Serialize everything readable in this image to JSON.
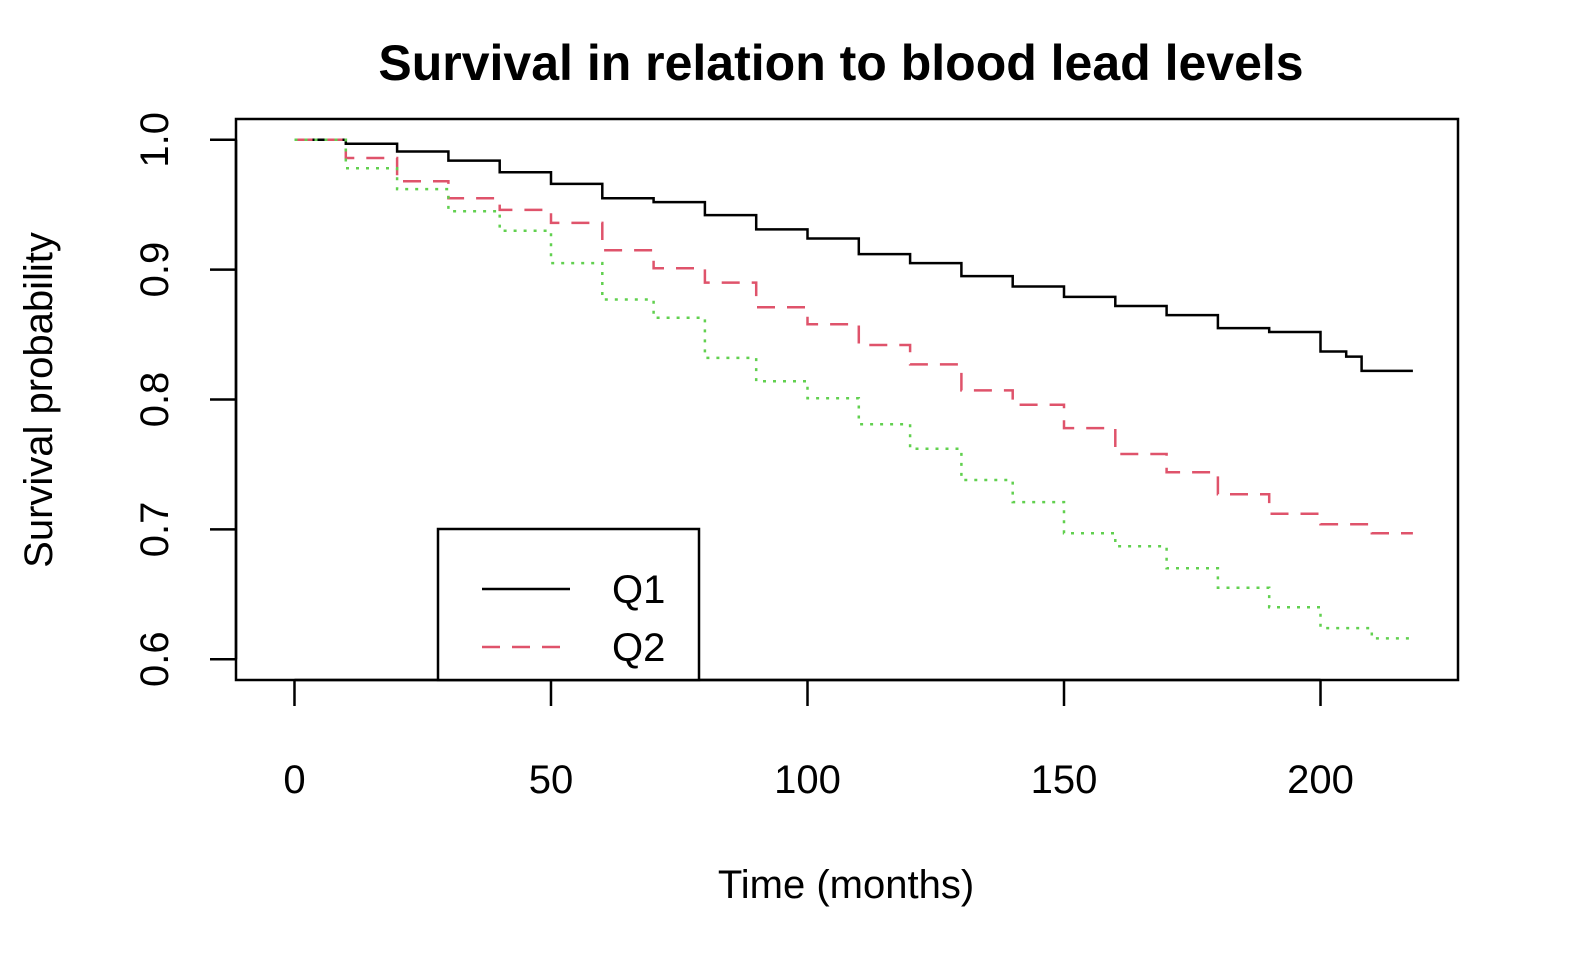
{
  "chart_data": {
    "type": "line",
    "title": "Survival in relation to blood lead levels",
    "xlabel": "Time (months)",
    "ylabel": "Survival probability",
    "xlim": [
      -11.4,
      226.8
    ],
    "ylim": [
      0.584,
      1.016
    ],
    "x_ticks": [
      0,
      50,
      100,
      150,
      200
    ],
    "x_tick_labels": [
      "0",
      "50",
      "100",
      "150",
      "200"
    ],
    "y_ticks": [
      0.6,
      0.7,
      0.8,
      0.9,
      1.0
    ],
    "y_tick_labels": [
      "0.6",
      "0.7",
      "0.8",
      "0.9",
      "1.0"
    ],
    "grid": false,
    "legend": {
      "position": "bottom-left",
      "entries": [
        "Q1",
        "Q2"
      ]
    },
    "series": [
      {
        "name": "Q1",
        "color": "#000000",
        "line_style": "solid",
        "x": [
          0,
          10,
          20,
          30,
          40,
          50,
          60,
          70,
          80,
          90,
          100,
          110,
          120,
          130,
          140,
          150,
          160,
          170,
          180,
          190,
          200,
          205,
          208,
          218
        ],
        "y": [
          1.0,
          0.997,
          0.991,
          0.984,
          0.975,
          0.966,
          0.955,
          0.952,
          0.942,
          0.931,
          0.924,
          0.912,
          0.905,
          0.895,
          0.887,
          0.879,
          0.872,
          0.865,
          0.855,
          0.852,
          0.837,
          0.833,
          0.822,
          0.822
        ]
      },
      {
        "color": "#DF536B",
        "line_style": "dashed",
        "x": [
          0,
          10,
          20,
          30,
          40,
          50,
          60,
          70,
          80,
          90,
          100,
          110,
          120,
          130,
          140,
          150,
          160,
          170,
          180,
          190,
          200,
          210,
          218
        ],
        "y": [
          1.0,
          0.986,
          0.968,
          0.955,
          0.946,
          0.936,
          0.915,
          0.901,
          0.89,
          0.871,
          0.858,
          0.842,
          0.827,
          0.807,
          0.796,
          0.778,
          0.758,
          0.744,
          0.727,
          0.712,
          0.704,
          0.697,
          0.697
        ]
      },
      {
        "color": "#61D04F",
        "line_style": "dotted",
        "x": [
          0,
          10,
          20,
          30,
          40,
          50,
          60,
          70,
          80,
          90,
          100,
          110,
          120,
          130,
          140,
          150,
          160,
          170,
          180,
          190,
          200,
          210,
          218
        ],
        "y": [
          1.0,
          0.978,
          0.962,
          0.945,
          0.93,
          0.905,
          0.877,
          0.863,
          0.832,
          0.814,
          0.801,
          0.781,
          0.762,
          0.738,
          0.721,
          0.697,
          0.687,
          0.67,
          0.655,
          0.64,
          0.624,
          0.616,
          0.615
        ]
      }
    ]
  }
}
